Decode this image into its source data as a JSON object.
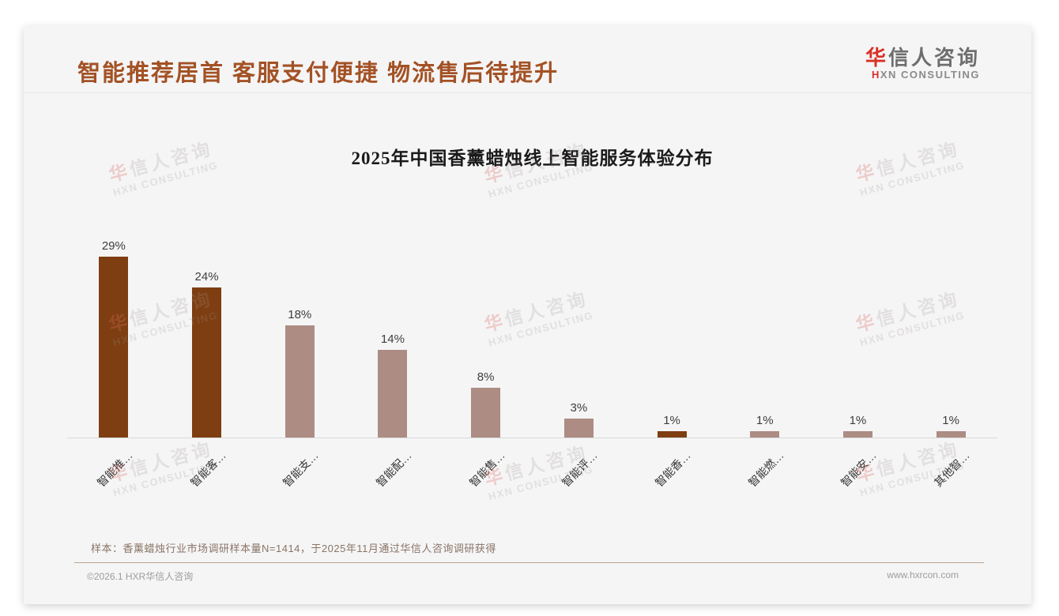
{
  "header": {
    "title": "智能推荐居首 客服支付便捷 物流售后待提升",
    "logo": {
      "cn_accent": "华",
      "cn_rest": "信人咨询",
      "en_accent": "H",
      "en_rest": "XN CONSULTING"
    }
  },
  "watermark": {
    "line1_accent": "华",
    "line1_rest": "信人咨询",
    "line2": "HXN CONSULTING"
  },
  "chart_data": {
    "type": "bar",
    "title": "2025年中国香薰蜡烛线上智能服务体验分布",
    "categories": [
      "智能推…",
      "智能客…",
      "智能支…",
      "智能配…",
      "智能售…",
      "智能评…",
      "智能香…",
      "智能燃…",
      "智能安…",
      "其他智…"
    ],
    "values": [
      29,
      24,
      18,
      14,
      8,
      3,
      1,
      1,
      1,
      1
    ],
    "value_labels": [
      "29%",
      "24%",
      "18%",
      "14%",
      "8%",
      "3%",
      "1%",
      "1%",
      "1%",
      "1%"
    ],
    "bar_colors": [
      "#7E3E11",
      "#7E3E11",
      "#AC8C83",
      "#AC8C83",
      "#AC8C83",
      "#AC8C83",
      "#7E3E11",
      "#AC8C83",
      "#AC8C83",
      "#AC8C83"
    ],
    "xlabel": "",
    "ylabel": "",
    "ylim": [
      0,
      30
    ],
    "grid": false,
    "legend": "none",
    "label_rotation_deg": -45
  },
  "footnote": "样本：香薰蜡烛行业市场调研样本量N=1414，于2025年11月通过华信人咨询调研获得",
  "footer": {
    "left": "©2026.1 HXR华信人咨询",
    "right": "www.hxrcon.com"
  },
  "colors": {
    "bar_dark": "#7E3E11",
    "bar_light": "#AC8C83",
    "title_brown": "#A35225",
    "logo_red": "#D93025"
  }
}
